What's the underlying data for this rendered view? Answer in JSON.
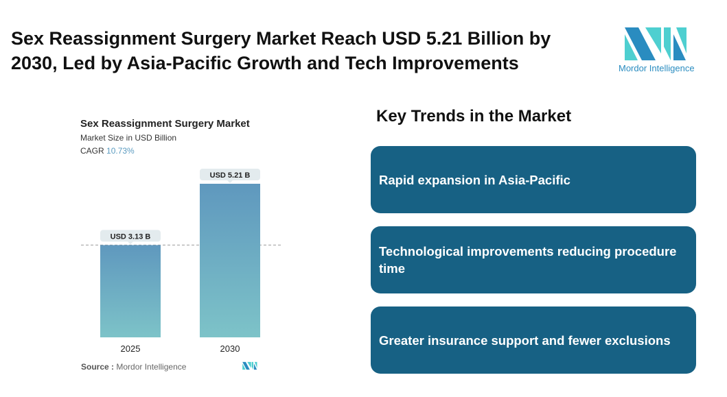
{
  "header": {
    "title": "Sex Reassignment Surgery Market Reach USD 5.21 Billion by 2030, Led by Asia-Pacific Growth and Tech Improvements",
    "logo_text": "Mordor Intelligence"
  },
  "chart_data": {
    "type": "bar",
    "title": "Sex Reassignment Surgery Market",
    "subtitle": "Market Size in USD Billion",
    "cagr_label": "CAGR",
    "cagr_value": "10.73%",
    "categories": [
      "2025",
      "2030"
    ],
    "values": [
      3.13,
      5.21
    ],
    "data_labels": [
      "USD 3.13 B",
      "USD 5.21 B"
    ],
    "ylim": [
      0,
      5.21
    ],
    "grid": false,
    "bar_color_top": "#5f98be",
    "bar_color_bottom": "#7dc3c8"
  },
  "source": {
    "label": "Source :",
    "value": "Mordor Intelligence"
  },
  "trends": {
    "title": "Key Trends in the Market",
    "items": [
      "Rapid expansion in Asia-Pacific",
      "Technological improvements reducing procedure time",
      "Greater insurance support and fewer exclusions"
    ],
    "card_color": "#176184"
  }
}
